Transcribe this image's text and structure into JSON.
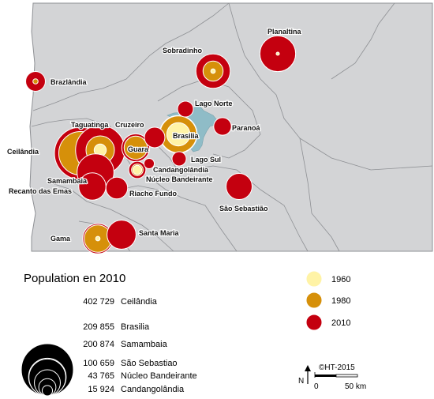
{
  "colors": {
    "background": "#ffffff",
    "region_fill": "#d3d4d6",
    "region_stroke": "#8e9094",
    "lake": "#8fbcc7",
    "y1960": "#fff3a6",
    "y1980": "#d6900a",
    "y2010": "#c4000f",
    "legend_circle": "#000000"
  },
  "places": [
    {
      "name": "Planaltina",
      "pop2010": 189421,
      "pop1980": null,
      "pop1960": 1550,
      "label": "Planaltina"
    },
    {
      "name": "Sobradinho",
      "pop2010": 175000,
      "pop1980": 60000,
      "pop1960": 3000,
      "label": "Sobradinho"
    },
    {
      "name": "Brazlândia",
      "pop2010": 57542,
      "pop1980": 4000,
      "pop1960": null,
      "label": "Brazlândia"
    },
    {
      "name": "Lago Norte",
      "pop2010": 37000,
      "pop1980": null,
      "pop1960": null,
      "label": "Lago Norte"
    },
    {
      "name": "Paranoá",
      "pop2010": 46233,
      "pop1980": null,
      "pop1960": null,
      "label": "Paranoá"
    },
    {
      "name": "Brasilia",
      "pop2010": 209855,
      "pop1980": 200000,
      "pop1960": 80000,
      "label": "Brasilia"
    },
    {
      "name": "Lago Sul",
      "pop2010": 30000,
      "pop1980": null,
      "pop1960": null,
      "label": "Lago Sul"
    },
    {
      "name": "Cruzeiro",
      "pop2010": 62000,
      "pop1980": null,
      "pop1960": null,
      "label": "Cruzeiro"
    },
    {
      "name": "Guara",
      "pop2010": 115385,
      "pop1980": 80000,
      "pop1960": null,
      "label": "Guara"
    },
    {
      "name": "Candangolândia",
      "pop2010": 15924,
      "pop1980": null,
      "pop1960": null,
      "label": "Candangolândia"
    },
    {
      "name": "Núcleo Bandeirante",
      "pop2010": 43765,
      "pop1980": 20000,
      "pop1960": 12000,
      "label": "Núcleo Bandeirante"
    },
    {
      "name": "Taguatinga",
      "pop2010": 361000,
      "pop1980": 120000,
      "pop1960": 22000,
      "label": "Taguatinga"
    },
    {
      "name": "Ceilândia",
      "pop2010": 402729,
      "pop1980": 280000,
      "pop1960": null,
      "label": "Ceilândia"
    },
    {
      "name": "Samambaia",
      "pop2010": 200874,
      "pop1980": null,
      "pop1960": null,
      "label": "Samambaia"
    },
    {
      "name": "Recanto das Emas",
      "pop2010": 110000,
      "pop1980": null,
      "pop1960": null,
      "label": "Recanto das Emas"
    },
    {
      "name": "Riacho Fundo",
      "pop2010": 70000,
      "pop1980": null,
      "pop1960": null,
      "label": "Riacho Fundo"
    },
    {
      "name": "São Sebastião",
      "pop2010": 100659,
      "pop1980": null,
      "pop1960": null,
      "label": "São Sebastião"
    },
    {
      "name": "Gama",
      "pop2010": 135723,
      "pop1980": 110000,
      "pop1960": 3000,
      "label": "Gama"
    },
    {
      "name": "Santa Maria",
      "pop2010": 125123,
      "pop1980": null,
      "pop1960": null,
      "label": "Santa Maria"
    }
  ],
  "legend": {
    "title": "Population en 2010",
    "items": [
      {
        "value": 402729,
        "number": "402 729",
        "name": "Ceilândia"
      },
      {
        "value": 209855,
        "number": "209 855",
        "name": "Brasilia"
      },
      {
        "value": 200874,
        "number": "200 874",
        "name": "Samambaia"
      },
      {
        "value": 100659,
        "number": "100 659",
        "name": "São Sebastiao"
      },
      {
        "value": 43765,
        "number": "43 765",
        "name": "Núcleo Bandeirante"
      },
      {
        "value": 15924,
        "number": "15 924",
        "name": "Candangolândia"
      }
    ],
    "years": [
      {
        "label": "1960",
        "color": "#fff3a6"
      },
      {
        "label": "1980",
        "color": "#d6900a"
      },
      {
        "label": "2010",
        "color": "#c4000f"
      }
    ]
  },
  "credit": "©HT-2015",
  "north": "N",
  "scale": {
    "start": "0",
    "end": "50 km"
  }
}
